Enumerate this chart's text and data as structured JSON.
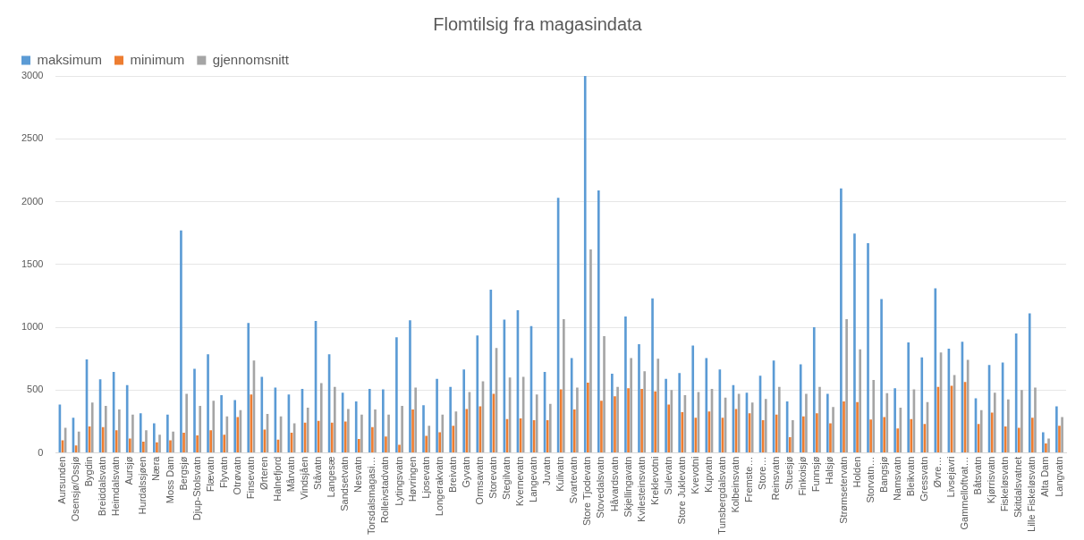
{
  "chart_data": {
    "type": "bar",
    "title": "Flomtilsig fra magasindata",
    "categories": [
      "Aursunden",
      "Osensjø/Ossjø",
      "Bygdin",
      "Breiddalsvatn",
      "Heimdalsvatn",
      "Aursjø",
      "Hurdalssjøen",
      "Næra",
      "Moss Dam",
      "Bergsjø",
      "Djup-Stolsvatn",
      "Flævatn",
      "Flyvatn",
      "Otrøvatn",
      "Finsevatn",
      "Ørteren",
      "Halnefjord",
      "Mårvatn",
      "Vindsjåen",
      "Ståvatn",
      "Langesæ",
      "Sandsetvatn",
      "Nesvatn",
      "Torsdalsmagasi…",
      "Rolleivstadvatn",
      "Lytingsvatn",
      "Høvringen",
      "Ljosevatn",
      "Longerakvatn",
      "Breivatn",
      "Gyvatn",
      "Ormsavatn",
      "Storevatn",
      "Stegilvatn",
      "Kvernevatn",
      "Langevatn",
      "Juvatn",
      "Kulivatn",
      "Svartevatn",
      "Store Tjodevatn",
      "Stovedalsvatn",
      "Håvardsvatn",
      "Skjellingavatn",
      "Kvilesteinsvatn",
      "Kreklevotni",
      "Sulevatn",
      "Store Juklevatn",
      "Kvevotni",
      "Kupvatn",
      "Tunsbergdalsvatn",
      "Kolbeinsvatn",
      "Fremste…",
      "Store…",
      "Reinsvatn",
      "Stuesjø",
      "Finkoisjø",
      "Funnsjø",
      "Halsjø",
      "Strømsetervatn",
      "Holden",
      "Storvatn…",
      "Bangsjø",
      "Namsvatn",
      "Bleikvatn",
      "Gressvatn",
      "Øvre…",
      "Livsejavri",
      "Gammelloftvat…",
      "Båtsvatn",
      "Kjørrisvatn",
      "Fiskeløsvatn",
      "Skitdalsvatnet",
      "Lille Fiskeløsvatn",
      "Alta Dam",
      "Langvatn"
    ],
    "series": [
      {
        "name": "maksimum",
        "color": "#5b9bd5",
        "values": [
          385,
          280,
          745,
          585,
          645,
          540,
          315,
          235,
          305,
          1770,
          670,
          785,
          460,
          420,
          1035,
          605,
          520,
          465,
          510,
          1050,
          785,
          480,
          410,
          510,
          505,
          920,
          1055,
          380,
          590,
          525,
          665,
          935,
          1300,
          1060,
          1135,
          1010,
          645,
          2030,
          755,
          3000,
          2090,
          630,
          1085,
          865,
          1230,
          590,
          635,
          855,
          755,
          665,
          540,
          480,
          615,
          735,
          410,
          705,
          1000,
          470,
          2105,
          1745,
          1670,
          1225,
          515,
          880,
          760,
          1310,
          830,
          885,
          435,
          700,
          720,
          950,
          1110,
          165,
          370
        ]
      },
      {
        "name": "minimum",
        "color": "#ed7d31",
        "values": [
          100,
          60,
          210,
          205,
          180,
          115,
          90,
          85,
          100,
          160,
          140,
          180,
          145,
          285,
          465,
          185,
          105,
          160,
          240,
          255,
          240,
          250,
          110,
          205,
          130,
          65,
          345,
          135,
          165,
          215,
          350,
          370,
          470,
          270,
          275,
          260,
          260,
          505,
          345,
          560,
          415,
          450,
          515,
          510,
          490,
          385,
          325,
          280,
          330,
          280,
          350,
          315,
          260,
          305,
          125,
          290,
          315,
          235,
          410,
          405,
          265,
          285,
          195,
          270,
          230,
          525,
          535,
          565,
          230,
          320,
          210,
          200,
          280,
          75,
          215
        ]
      },
      {
        "name": "gjennomsnitt",
        "color": "#a5a5a5",
        "values": [
          200,
          170,
          400,
          375,
          345,
          305,
          180,
          145,
          170,
          470,
          375,
          415,
          290,
          340,
          735,
          310,
          290,
          235,
          360,
          555,
          525,
          350,
          305,
          345,
          305,
          375,
          520,
          215,
          305,
          330,
          485,
          570,
          835,
          600,
          605,
          465,
          390,
          1065,
          520,
          1620,
          930,
          525,
          755,
          650,
          750,
          500,
          460,
          485,
          510,
          440,
          470,
          400,
          430,
          525,
          260,
          470,
          525,
          365,
          1065,
          825,
          580,
          475,
          360,
          505,
          405,
          800,
          620,
          740,
          340,
          480,
          425,
          500,
          520,
          115,
          285
        ]
      }
    ],
    "ylim": [
      0,
      3000
    ],
    "yticks": [
      0,
      500,
      1000,
      1500,
      2000,
      2500,
      3000
    ],
    "grid": "y",
    "legend": "top left"
  }
}
